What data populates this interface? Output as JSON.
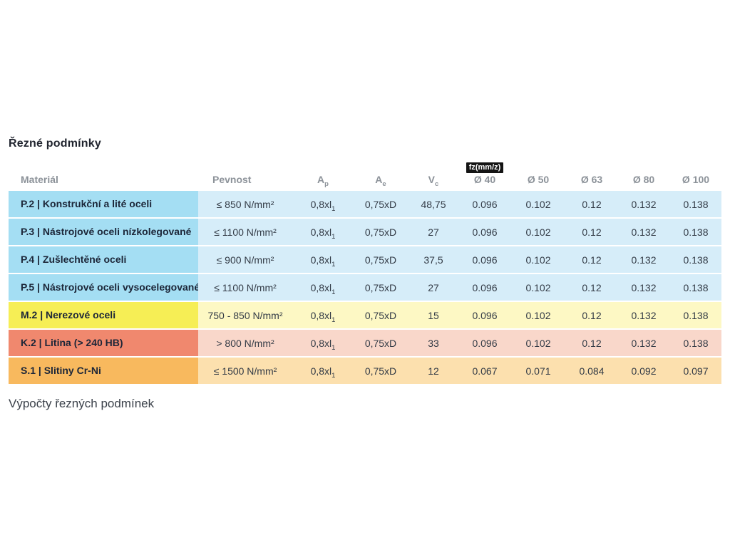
{
  "page": {
    "title": "Řezné podmínky",
    "footer": "Výpočty řezných podmínek"
  },
  "table": {
    "headers": {
      "material": "Materiál",
      "pevnost": "Pevnost",
      "ap_main": "A",
      "ap_sub": "p",
      "ae_main": "A",
      "ae_sub": "e",
      "vc_main": "V",
      "vc_sub": "c",
      "fz_badge": "fz(mm/z)",
      "d40": "Ø 40",
      "d50": "Ø 50",
      "d63": "Ø 63",
      "d80": "Ø 80",
      "d100": "Ø 100"
    },
    "rows": [
      {
        "theme": "blue",
        "material": "P.2 | Konstrukční a lité oceli",
        "pevnost": "≤ 850 N/mm²",
        "ap_main": "0,8xl",
        "ap_sub": "1",
        "ae": "0,75xD",
        "vc": "48,75",
        "d40": "0.096",
        "d50": "0.102",
        "d63": "0.12",
        "d80": "0.132",
        "d100": "0.138"
      },
      {
        "theme": "blue",
        "material": "P.3 | Nástrojové oceli nízkolegované",
        "pevnost": "≤ 1100 N/mm²",
        "ap_main": "0,8xl",
        "ap_sub": "1",
        "ae": "0,75xD",
        "vc": "27",
        "d40": "0.096",
        "d50": "0.102",
        "d63": "0.12",
        "d80": "0.132",
        "d100": "0.138"
      },
      {
        "theme": "blue",
        "material": "P.4 | Zušlechtěné oceli",
        "pevnost": "≤ 900 N/mm²",
        "ap_main": "0,8xl",
        "ap_sub": "1",
        "ae": "0,75xD",
        "vc": "37,5",
        "d40": "0.096",
        "d50": "0.102",
        "d63": "0.12",
        "d80": "0.132",
        "d100": "0.138"
      },
      {
        "theme": "blue",
        "material": "P.5 | Nástrojové oceli vysocelegované",
        "pevnost": "≤ 1100 N/mm²",
        "ap_main": "0,8xl",
        "ap_sub": "1",
        "ae": "0,75xD",
        "vc": "27",
        "d40": "0.096",
        "d50": "0.102",
        "d63": "0.12",
        "d80": "0.132",
        "d100": "0.138"
      },
      {
        "theme": "yellow",
        "material": "M.2 | Nerezové oceli",
        "pevnost": "750 - 850 N/mm²",
        "ap_main": "0,8xl",
        "ap_sub": "1",
        "ae": "0,75xD",
        "vc": "15",
        "d40": "0.096",
        "d50": "0.102",
        "d63": "0.12",
        "d80": "0.132",
        "d100": "0.138"
      },
      {
        "theme": "salmon",
        "material": "K.2 | Litina (> 240 HB)",
        "pevnost": "> 800 N/mm²",
        "ap_main": "0,8xl",
        "ap_sub": "1",
        "ae": "0,75xD",
        "vc": "33",
        "d40": "0.096",
        "d50": "0.102",
        "d63": "0.12",
        "d80": "0.132",
        "d100": "0.138"
      },
      {
        "theme": "orange",
        "material": "S.1 | Slitiny Cr-Ni",
        "pevnost": "≤ 1500 N/mm²",
        "ap_main": "0,8xl",
        "ap_sub": "1",
        "ae": "0,75xD",
        "vc": "12",
        "d40": "0.067",
        "d50": "0.071",
        "d63": "0.084",
        "d80": "0.092",
        "d100": "0.097"
      }
    ]
  },
  "colors": {
    "blue_dark": "#a4def3",
    "blue_light": "#d6edf9",
    "yellow_dark": "#f6ee55",
    "yellow_light": "#fdf8c4",
    "salmon_dark": "#f0886e",
    "salmon_light": "#f9d7ca",
    "orange_dark": "#f8b95e",
    "orange_light": "#fce0ae",
    "badge_bg": "#141414",
    "title_text": "#20242e",
    "header_text": "#8c9299"
  }
}
